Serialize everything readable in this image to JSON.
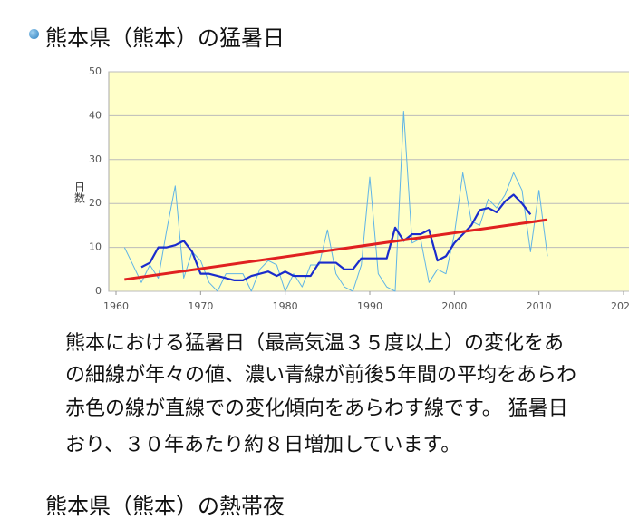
{
  "header": {
    "title": "熊本県（熊本）の猛暑日"
  },
  "chart_data": {
    "type": "line",
    "title": "熊本",
    "ylabel": "日数",
    "xlim": [
      1960,
      2020
    ],
    "xticks": [
      1960,
      1970,
      1980,
      1990,
      2000,
      2010,
      2020
    ],
    "ylim": [
      0,
      50
    ],
    "yticks": [
      0,
      10,
      20,
      30,
      40,
      50
    ],
    "grid": true,
    "background": "#ffffc8",
    "series": [
      {
        "color": "#5fb4e6",
        "width": 1,
        "x": [
          1961,
          1962,
          1963,
          1964,
          1965,
          1966,
          1967,
          1968,
          1969,
          1970,
          1971,
          1972,
          1973,
          1974,
          1975,
          1976,
          1977,
          1978,
          1979,
          1980,
          1981,
          1982,
          1983,
          1984,
          1985,
          1986,
          1987,
          1988,
          1989,
          1990,
          1991,
          1992,
          1993,
          1994,
          1995,
          1996,
          1997,
          1998,
          1999,
          2000,
          2001,
          2002,
          2003,
          2004,
          2005,
          2006,
          2007,
          2008,
          2009,
          2010,
          2011
        ],
        "values": [
          10,
          6,
          2,
          6,
          3,
          14,
          24,
          3,
          9,
          7,
          2,
          0,
          4,
          4,
          4,
          0,
          5,
          7,
          6,
          0,
          4,
          1,
          6,
          6,
          14,
          4,
          1,
          0,
          6,
          26,
          4,
          1,
          0,
          41,
          11,
          12,
          2,
          5,
          4,
          13,
          27,
          16,
          15,
          21,
          19,
          22,
          27,
          23,
          9,
          23,
          8
        ]
      },
      {
        "color": "#1a2ccc",
        "width": 2.2,
        "x": [
          1963,
          1964,
          1965,
          1966,
          1967,
          1968,
          1969,
          1970,
          1971,
          1972,
          1973,
          1974,
          1975,
          1976,
          1977,
          1978,
          1979,
          1980,
          1981,
          1982,
          1983,
          1984,
          1985,
          1986,
          1987,
          1988,
          1989,
          1990,
          1991,
          1992,
          1993,
          1994,
          1995,
          1996,
          1997,
          1998,
          1999,
          2000,
          2001,
          2002,
          2003,
          2004,
          2005,
          2006,
          2007,
          2008,
          2009
        ],
        "values": [
          5.5,
          6.5,
          10,
          10,
          10.5,
          11.5,
          9,
          4,
          4,
          3.5,
          3,
          2.5,
          2.5,
          3.5,
          4,
          4.5,
          3.5,
          4.5,
          3.5,
          3.5,
          3.5,
          6.5,
          6.5,
          6.5,
          5,
          5,
          7.5,
          7.5,
          7.5,
          7.5,
          14.5,
          11.5,
          13,
          13,
          14,
          7,
          8,
          11,
          13,
          15,
          18.5,
          19,
          18,
          20.5,
          22,
          20,
          17.5
        ]
      },
      {
        "color": "#e02020",
        "width": 3,
        "x": [
          1961,
          2011
        ],
        "values": [
          2.7,
          16.3
        ]
      }
    ]
  },
  "body": {
    "lines": [
      "熊本における猛暑日（最高気温３５度以上）の変化をあ",
      "の細線が年々の値、濃い青線が前後5年間の平均をあらわ",
      "赤色の線が直線での変化傾向をあらわす線です。 猛暑日",
      "おり、３０年あたり約８日増加しています。"
    ]
  },
  "next_heading": "熊本県（熊本）の熱帯夜"
}
